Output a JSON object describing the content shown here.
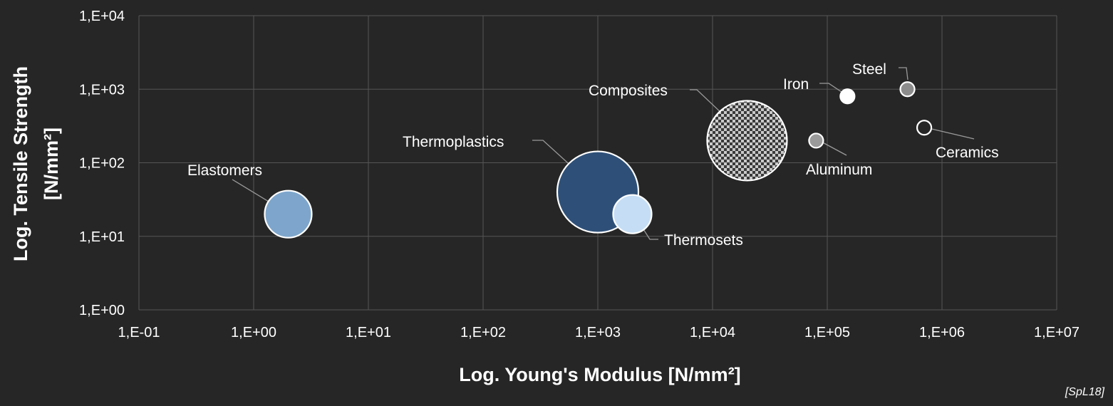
{
  "chart_data": {
    "type": "bubble",
    "xlabel": "Log. Young's Modulus [N/mm²]",
    "ylabel_line1": "Log. Tensile Strength",
    "ylabel_line2": "[N/mm²]",
    "x_scale": "log",
    "y_scale": "log",
    "xlim": [
      0.1,
      10000000
    ],
    "ylim": [
      1,
      10000
    ],
    "x_tick_labels": [
      "1,E-01",
      "1,E+00",
      "1,E+01",
      "1,E+02",
      "1,E+03",
      "1,E+04",
      "1,E+05",
      "1,E+06",
      "1,E+07"
    ],
    "y_tick_labels": [
      "1,E+00",
      "1,E+01",
      "1,E+02",
      "1,E+03",
      "1,E+04"
    ],
    "grid": true,
    "legend": "none",
    "points": [
      {
        "label": "Elastomers",
        "x": 2,
        "y": 20,
        "color": "#7ea6cc",
        "pattern": "solid"
      },
      {
        "label": "Thermoplastics",
        "x": 1000,
        "y": 40,
        "color": "#2e5078",
        "pattern": "solid"
      },
      {
        "label": "Thermosets",
        "x": 2000,
        "y": 20,
        "color": "#c5def5",
        "pattern": "solid"
      },
      {
        "label": "Composites",
        "x": 20000,
        "y": 200,
        "color": "#b5b5b5",
        "pattern": "checkered"
      },
      {
        "label": "Iron",
        "x": 150000,
        "y": 800,
        "color": "#ffffff",
        "pattern": "solid"
      },
      {
        "label": "Steel",
        "x": 500000,
        "y": 1000,
        "color": "#8c8c8c",
        "pattern": "solid"
      },
      {
        "label": "Aluminum",
        "x": 80000,
        "y": 200,
        "color": "#9a9a9a",
        "pattern": "solid"
      },
      {
        "label": "Ceramics",
        "x": 700000,
        "y": 300,
        "color": "#262626",
        "pattern": "solid"
      }
    ]
  },
  "citation": "[SpL18]"
}
